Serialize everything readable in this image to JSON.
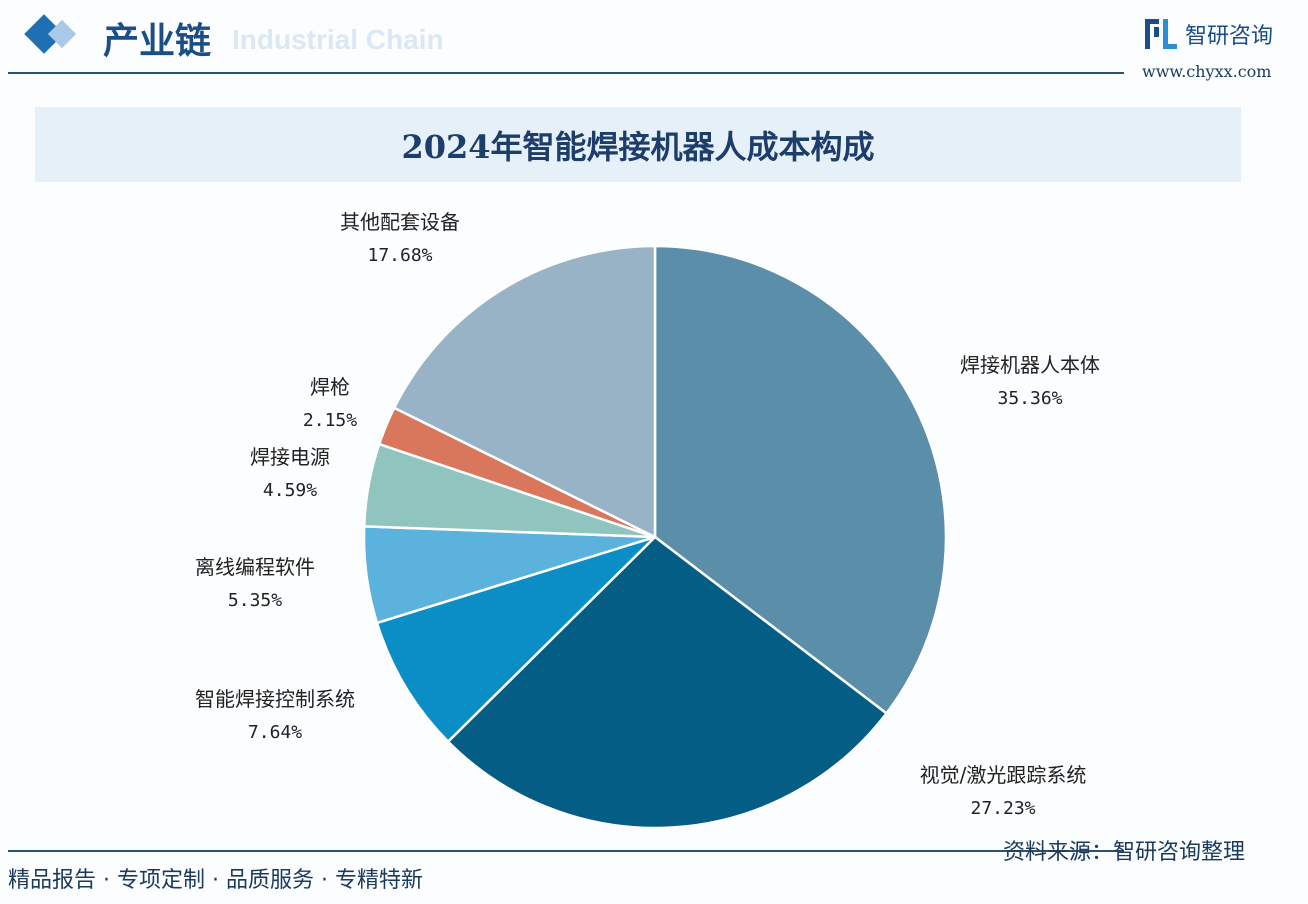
{
  "header": {
    "section_title": "产业链",
    "section_subtitle": "Industrial Chain",
    "logo_text": "智研咨询",
    "url": "www.chyxx.com"
  },
  "footer": {
    "tagline": "精品报告 · 专项定制 · 品质服务 · 专精特新",
    "source": "资料来源：智研咨询整理"
  },
  "chart_data": {
    "type": "pie",
    "title": "2024年智能焊接机器人成本构成",
    "start_angle": "12 o'clock",
    "direction": "clockwise",
    "slices": [
      {
        "label": "焊接机器人本体",
        "value": 35.36,
        "value_label": "35.36%",
        "color": "#5b8ea8"
      },
      {
        "label": "视觉/激光跟踪系统",
        "value": 27.23,
        "value_label": "27.23%",
        "color": "#035d85"
      },
      {
        "label": "智能焊接控制系统",
        "value": 7.64,
        "value_label": "7.64%",
        "color": "#0b8dc6"
      },
      {
        "label": "离线编程软件",
        "value": 5.35,
        "value_label": "5.35%",
        "color": "#5bb3dd"
      },
      {
        "label": "焊接电源",
        "value": 4.59,
        "value_label": "4.59%",
        "color": "#8fc4bf"
      },
      {
        "label": "焊枪",
        "value": 2.15,
        "value_label": "2.15%",
        "color": "#d9775c"
      },
      {
        "label": "其他配套设备",
        "value": 17.68,
        "value_label": "17.68%",
        "color": "#98b3c6"
      }
    ]
  }
}
